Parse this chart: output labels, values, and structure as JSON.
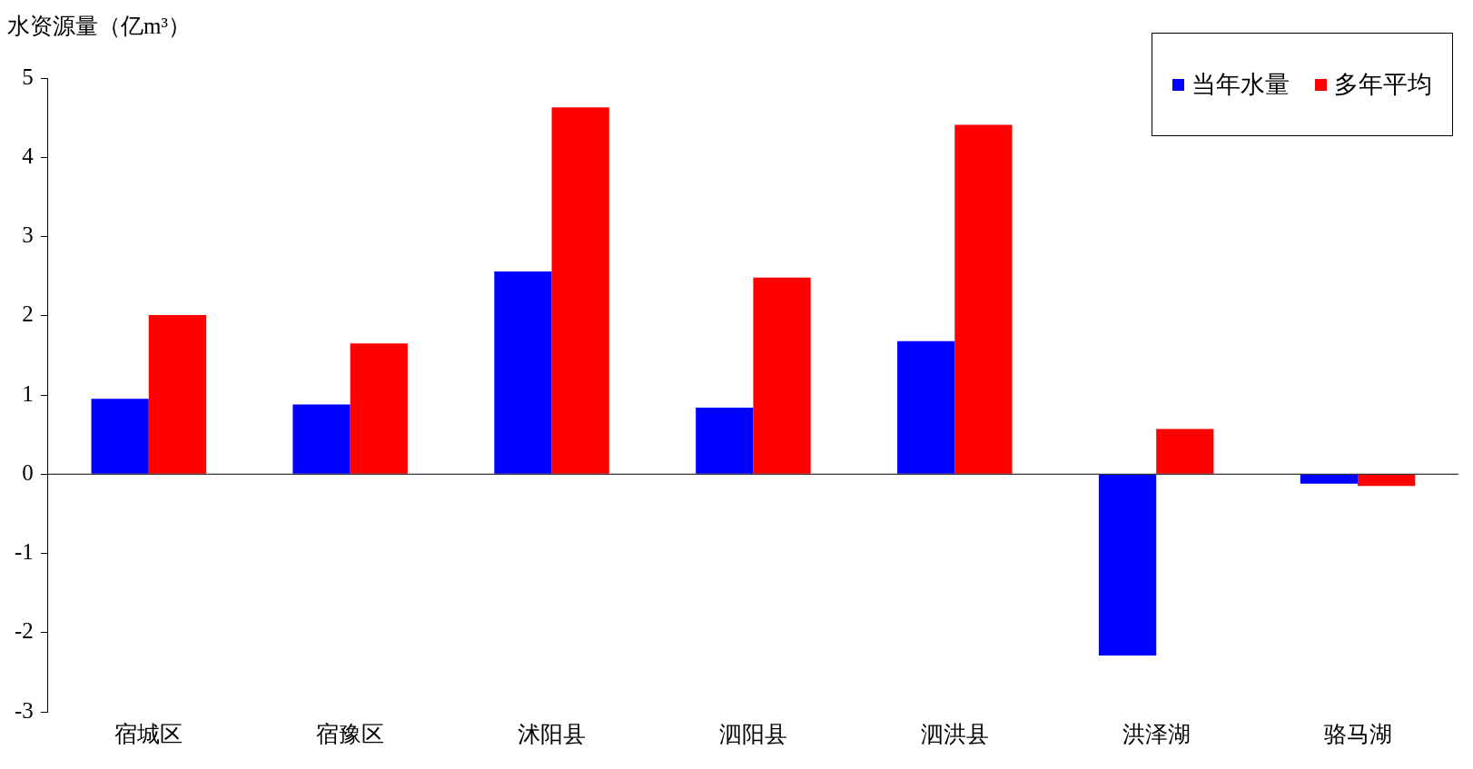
{
  "chart_data": {
    "type": "bar",
    "ylabel": "水资源量（亿m³）",
    "categories": [
      "宿城区",
      "宿豫区",
      "沭阳县",
      "泗阳县",
      "泗洪县",
      "洪泽湖",
      "骆马湖"
    ],
    "series": [
      {
        "name": "当年水量",
        "color": "#0000ff",
        "values": [
          0.95,
          0.88,
          2.56,
          0.84,
          1.68,
          -2.29,
          -0.12
        ]
      },
      {
        "name": "多年平均",
        "color": "#ff0000",
        "values": [
          2.01,
          1.65,
          4.63,
          2.48,
          4.41,
          0.57,
          -0.15
        ]
      }
    ],
    "ylim": [
      -3,
      5
    ],
    "yticks": [
      -3,
      -2,
      -1,
      0,
      1,
      2,
      3,
      4,
      5
    ],
    "grid": false,
    "ref_lines": [
      {
        "axis": "y",
        "value": 0,
        "color": "#000000"
      }
    ],
    "legend": "top right"
  }
}
